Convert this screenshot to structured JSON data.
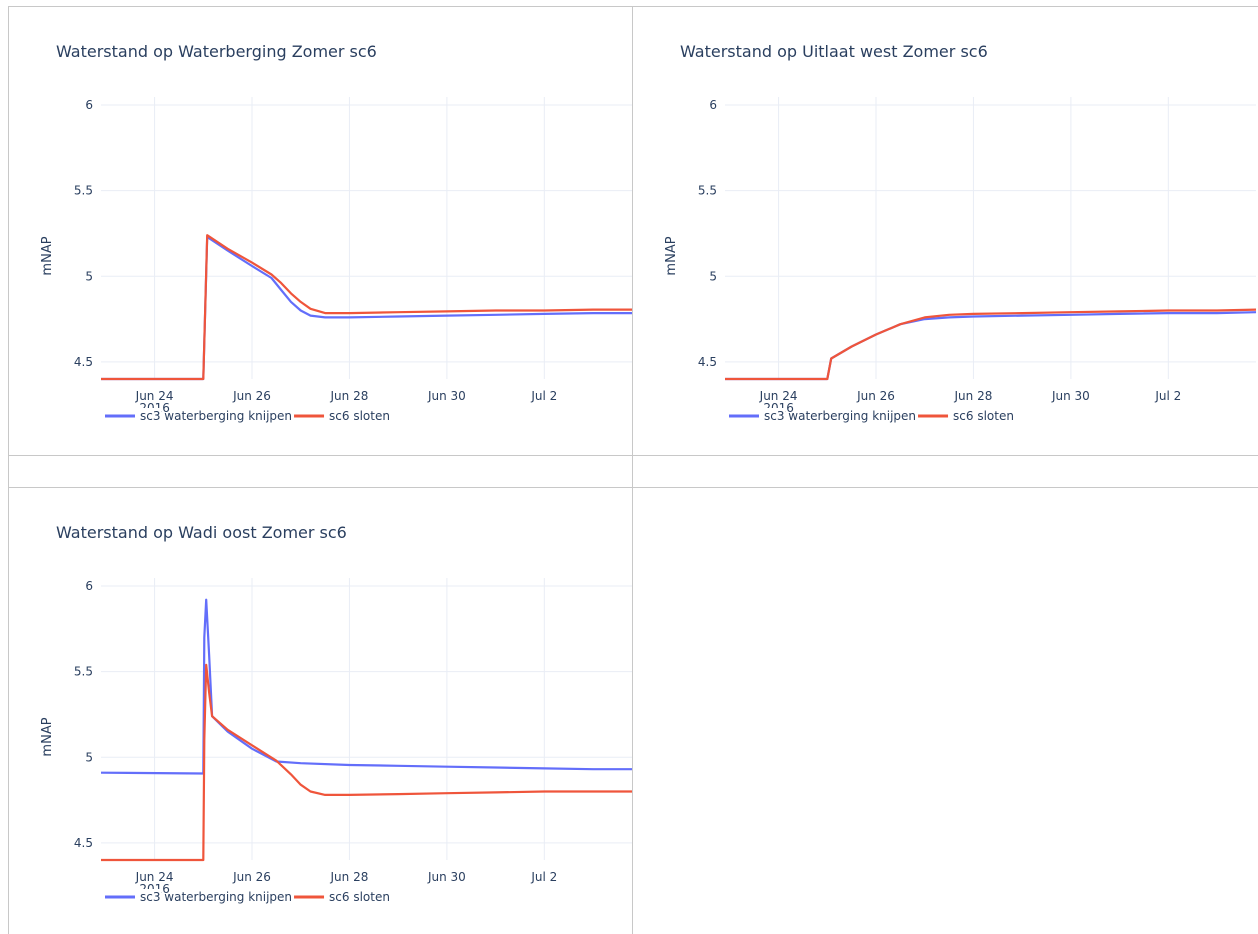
{
  "chart_data": [
    {
      "type": "line",
      "title": "Waterstand op Waterberging Zomer sc6",
      "ylabel": "mNAP",
      "xlabel": "",
      "ylim": [
        4.4,
        6.0
      ],
      "yticks": [
        "6",
        "5.5",
        "5",
        "4.5"
      ],
      "ytick_values": [
        6,
        5.5,
        5,
        4.5
      ],
      "xlim": [
        -1.1,
        9.8
      ],
      "xticks": [
        {
          "v": 0,
          "label": "Jun 24",
          "sub": "2016"
        },
        {
          "v": 2,
          "label": "Jun 26",
          "sub": ""
        },
        {
          "v": 4,
          "label": "Jun 28",
          "sub": ""
        },
        {
          "v": 6,
          "label": "Jun 30",
          "sub": ""
        },
        {
          "v": 8,
          "label": "Jul 2",
          "sub": ""
        }
      ],
      "series": [
        {
          "name": "sc3 waterberging knijpen",
          "color": "#636efa",
          "x": [
            -1.1,
            1.0,
            1.08,
            1.5,
            2.0,
            2.4,
            2.6,
            2.8,
            3.0,
            3.2,
            3.5,
            4.0,
            5.0,
            6.0,
            7.0,
            8.0,
            9.0,
            9.8
          ],
          "y": [
            4.4,
            4.4,
            5.23,
            5.15,
            5.06,
            4.99,
            4.92,
            4.85,
            4.8,
            4.77,
            4.76,
            4.76,
            4.765,
            4.77,
            4.775,
            4.78,
            4.785,
            4.785
          ]
        },
        {
          "name": "sc6 sloten",
          "color": "#ef553b",
          "x": [
            -1.1,
            1.0,
            1.08,
            1.5,
            2.0,
            2.4,
            2.6,
            2.8,
            3.0,
            3.2,
            3.5,
            4.0,
            5.0,
            6.0,
            7.0,
            8.0,
            9.0,
            9.8
          ],
          "y": [
            4.4,
            4.4,
            5.24,
            5.16,
            5.08,
            5.01,
            4.96,
            4.9,
            4.85,
            4.81,
            4.785,
            4.785,
            4.79,
            4.795,
            4.8,
            4.8,
            4.805,
            4.805
          ]
        }
      ]
    },
    {
      "type": "line",
      "title": "Waterstand op Uitlaat west Zomer sc6",
      "ylabel": "mNAP",
      "xlabel": "",
      "ylim": [
        4.4,
        6.0
      ],
      "yticks": [
        "6",
        "5.5",
        "5",
        "4.5"
      ],
      "ytick_values": [
        6,
        5.5,
        5,
        4.5
      ],
      "xlim": [
        -1.1,
        9.8
      ],
      "xticks": [
        {
          "v": 0,
          "label": "Jun 24",
          "sub": "2016"
        },
        {
          "v": 2,
          "label": "Jun 26",
          "sub": ""
        },
        {
          "v": 4,
          "label": "Jun 28",
          "sub": ""
        },
        {
          "v": 6,
          "label": "Jun 30",
          "sub": ""
        },
        {
          "v": 8,
          "label": "Jul 2",
          "sub": ""
        }
      ],
      "series": [
        {
          "name": "sc3 waterberging knijpen",
          "color": "#636efa",
          "x": [
            -1.1,
            1.0,
            1.08,
            1.5,
            2.0,
            2.5,
            3.0,
            3.5,
            4.0,
            5.0,
            6.0,
            7.0,
            8.0,
            9.0,
            9.8
          ],
          "y": [
            4.4,
            4.4,
            4.52,
            4.59,
            4.66,
            4.72,
            4.75,
            4.76,
            4.765,
            4.77,
            4.775,
            4.78,
            4.785,
            4.785,
            4.79
          ]
        },
        {
          "name": "sc6 sloten",
          "color": "#ef553b",
          "x": [
            -1.1,
            1.0,
            1.08,
            1.5,
            2.0,
            2.5,
            3.0,
            3.5,
            4.0,
            5.0,
            6.0,
            7.0,
            8.0,
            9.0,
            9.8
          ],
          "y": [
            4.4,
            4.4,
            4.52,
            4.59,
            4.66,
            4.72,
            4.76,
            4.775,
            4.78,
            4.785,
            4.79,
            4.795,
            4.8,
            4.8,
            4.805
          ]
        }
      ]
    },
    {
      "type": "line",
      "title": "Waterstand op Wadi oost Zomer sc6",
      "ylabel": "mNAP",
      "xlabel": "",
      "ylim": [
        4.4,
        6.0
      ],
      "yticks": [
        "6",
        "5.5",
        "5",
        "4.5"
      ],
      "ytick_values": [
        6,
        5.5,
        5,
        4.5
      ],
      "xlim": [
        -1.1,
        9.8
      ],
      "xticks": [
        {
          "v": 0,
          "label": "Jun 24",
          "sub": "2016"
        },
        {
          "v": 2,
          "label": "Jun 26",
          "sub": ""
        },
        {
          "v": 4,
          "label": "Jun 28",
          "sub": ""
        },
        {
          "v": 6,
          "label": "Jun 30",
          "sub": ""
        },
        {
          "v": 8,
          "label": "Jul 2",
          "sub": ""
        }
      ],
      "series": [
        {
          "name": "sc3 waterberging knijpen",
          "color": "#636efa",
          "x": [
            -1.1,
            1.0,
            1.02,
            1.06,
            1.12,
            1.18,
            1.5,
            2.0,
            2.5,
            3.0,
            4.0,
            5.0,
            6.0,
            7.0,
            8.0,
            9.0,
            9.8
          ],
          "y": [
            4.91,
            4.905,
            5.7,
            5.92,
            5.6,
            5.24,
            5.15,
            5.05,
            4.975,
            4.965,
            4.955,
            4.95,
            4.945,
            4.94,
            4.935,
            4.93,
            4.93
          ]
        },
        {
          "name": "sc6 sloten",
          "color": "#ef553b",
          "x": [
            -1.1,
            1.0,
            1.02,
            1.06,
            1.12,
            1.18,
            1.5,
            2.0,
            2.5,
            2.8,
            3.0,
            3.2,
            3.5,
            4.0,
            5.0,
            6.0,
            7.0,
            8.0,
            9.0,
            9.8
          ],
          "y": [
            4.4,
            4.4,
            5.1,
            5.54,
            5.38,
            5.24,
            5.16,
            5.07,
            4.98,
            4.9,
            4.84,
            4.8,
            4.78,
            4.78,
            4.785,
            4.79,
            4.795,
            4.8,
            4.8,
            4.8
          ]
        }
      ]
    }
  ]
}
